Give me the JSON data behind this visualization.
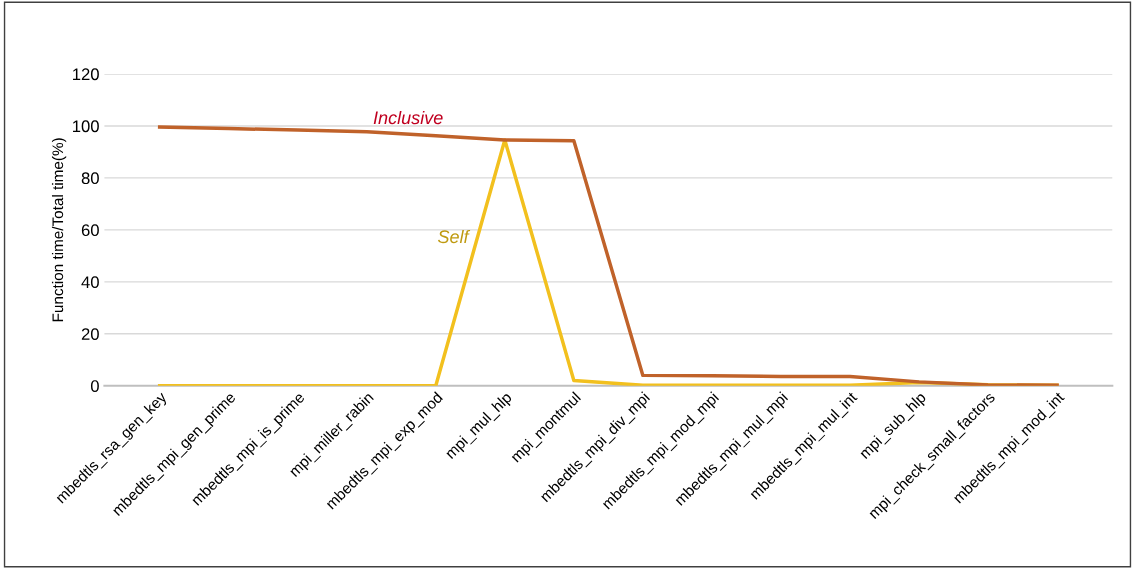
{
  "chart_data": {
    "type": "line",
    "ylabel": "Function time/Total time(%)",
    "categories": [
      "mbedtls_rsa_gen_key",
      "mbedtls_mpi_gen_prime",
      "mbedtls_mpi_is_prime",
      "mpi_miller_rabin",
      "mbedtls_mpi_exp_mod",
      "mpi_mul_hlp",
      "mpi_montmul",
      "mbedtls_mpi_div_mpi",
      "mbedtls_mpi_mod_mpi",
      "mbedtls_mpi_mul_mpi",
      "mbedtls_mpi_mul_int",
      "mpi_sub_hlp",
      "mpi_check_small_factors",
      "mbedtls_mpi_mod_int"
    ],
    "series": [
      {
        "name": "Inclusive",
        "color": "#c0622a",
        "values": [
          99.6,
          99,
          98.4,
          97.8,
          96.2,
          94.6,
          94.3,
          4.0,
          3.9,
          3.6,
          3.6,
          1.5,
          0.3,
          0.2
        ]
      },
      {
        "name": "Self",
        "color": "#f2c01e",
        "values": [
          0,
          0,
          0,
          0,
          0,
          94.6,
          2,
          0.2,
          0.2,
          0.2,
          0.2,
          1.3,
          0.4,
          0.2
        ]
      }
    ],
    "ylim": [
      0,
      120
    ],
    "yticks": [
      0,
      20,
      40,
      60,
      80,
      100,
      120
    ],
    "grid": "y",
    "legend": false,
    "marker": "none",
    "line_style": "solid"
  }
}
